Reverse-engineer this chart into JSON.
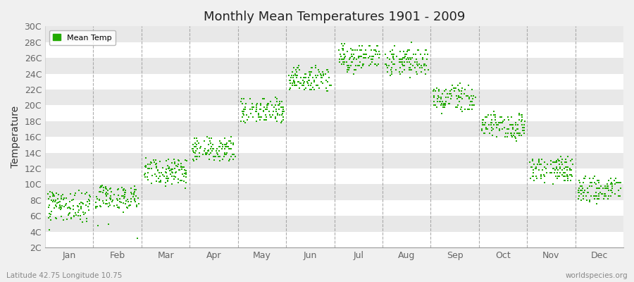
{
  "title": "Monthly Mean Temperatures 1901 - 2009",
  "ylabel": "Temperature",
  "background_color": "#f0f0f0",
  "plot_bg_color": "#f0f0f0",
  "stripe_color_light": "#f5f5f5",
  "stripe_color_dark": "#e8e8e8",
  "dot_color": "#22aa00",
  "dot_size": 3,
  "ylim": [
    2,
    30
  ],
  "ytick_labels": [
    "2C",
    "4C",
    "6C",
    "8C",
    "10C",
    "12C",
    "14C",
    "16C",
    "18C",
    "20C",
    "22C",
    "24C",
    "26C",
    "28C",
    "30C"
  ],
  "ytick_values": [
    2,
    4,
    6,
    8,
    10,
    12,
    14,
    16,
    18,
    20,
    22,
    24,
    26,
    28,
    30
  ],
  "months": [
    "Jan",
    "Feb",
    "Mar",
    "Apr",
    "May",
    "Jun",
    "Jul",
    "Aug",
    "Sep",
    "Oct",
    "Nov",
    "Dec"
  ],
  "footnote_left": "Latitude 42.75 Longitude 10.75",
  "footnote_right": "worldspecies.org",
  "legend_label": "Mean Temp",
  "mean_temps": {
    "Jan": [
      7.2,
      8.1,
      7.5,
      6.8,
      8.5,
      7.0,
      9.1,
      8.8,
      7.3,
      6.5,
      8.2,
      7.9,
      6.2,
      7.6,
      8.0,
      5.8,
      7.1,
      6.9,
      8.3,
      7.4,
      6.0,
      8.7,
      7.8,
      5.5,
      7.0,
      8.9,
      7.2,
      6.4,
      8.1,
      4.2,
      5.9,
      7.8,
      8.4,
      6.7,
      7.5,
      5.2,
      6.8,
      8.0,
      7.3,
      5.6,
      8.8,
      7.1,
      6.3,
      9.0,
      7.7,
      6.1,
      8.5,
      7.0,
      5.7,
      7.4,
      8.6,
      6.9,
      7.2,
      5.3,
      8.1,
      7.8,
      6.6,
      8.9,
      7.4,
      5.9,
      8.3,
      7.0,
      6.5,
      8.7,
      7.3,
      5.8,
      8.0,
      7.6,
      6.2,
      8.4,
      7.1,
      5.7,
      8.8,
      7.5,
      6.0,
      9.2,
      7.2,
      5.5,
      8.1,
      7.8,
      6.4,
      8.6,
      7.3,
      5.9,
      8.2,
      7.0,
      6.7,
      8.9,
      7.4,
      6.1,
      8.5,
      7.2,
      5.6,
      8.0,
      7.7,
      6.3,
      8.8,
      7.5,
      5.8,
      9.0,
      7.1,
      6.4,
      8.3,
      7.8,
      5.7,
      8.7,
      7.4,
      6.0,
      8.2
    ],
    "Feb": [
      8.0,
      7.2,
      9.0,
      8.5,
      7.8,
      6.5,
      8.9,
      7.4,
      9.2,
      8.0,
      7.1,
      9.5,
      8.2,
      7.6,
      9.1,
      8.8,
      7.3,
      9.0,
      8.4,
      7.0,
      9.3,
      8.7,
      7.5,
      9.8,
      8.1,
      7.2,
      9.4,
      8.6,
      7.9,
      9.1,
      8.3,
      3.2,
      8.0,
      7.4,
      5.0,
      8.8,
      7.2,
      9.6,
      8.0,
      4.8,
      9.2,
      7.8,
      8.5,
      9.9,
      8.2,
      7.5,
      9.0,
      8.7,
      7.3,
      9.4,
      8.1,
      7.8,
      9.3,
      8.5,
      7.0,
      9.1,
      8.8,
      7.4,
      9.6,
      8.2,
      7.7,
      9.0,
      8.4,
      7.1,
      9.5,
      8.3,
      7.6,
      9.2,
      8.0,
      7.4,
      9.7,
      8.5,
      7.2,
      9.3,
      8.8,
      7.5,
      9.0,
      8.2,
      7.8,
      9.4,
      8.6,
      7.3,
      9.1,
      8.0,
      7.6,
      9.5,
      8.3,
      7.0,
      9.8,
      8.7,
      7.4,
      9.2,
      8.1,
      7.9,
      9.3,
      8.5,
      7.2,
      9.6,
      8.4,
      7.7,
      9.0,
      8.2,
      7.5,
      9.4,
      8.8,
      7.1,
      9.7,
      8.3,
      7.8
    ],
    "Mar": [
      11.0,
      12.2,
      11.5,
      10.8,
      12.5,
      11.0,
      13.1,
      12.8,
      11.3,
      10.5,
      12.2,
      11.9,
      10.2,
      11.6,
      12.0,
      9.8,
      11.1,
      10.9,
      12.3,
      11.4,
      10.0,
      12.7,
      11.8,
      9.5,
      11.0,
      12.9,
      11.2,
      10.4,
      12.1,
      11.5,
      10.9,
      12.3,
      11.0,
      10.3,
      12.6,
      11.7,
      10.1,
      12.0,
      11.4,
      10.7,
      13.2,
      12.0,
      11.3,
      13.0,
      12.5,
      10.8,
      11.9,
      12.4,
      11.0,
      12.8,
      11.5,
      12.1,
      13.0,
      11.8,
      10.5,
      12.2,
      11.9,
      10.2,
      12.5,
      11.6,
      12.0,
      13.1,
      11.3,
      10.8,
      12.9,
      11.5,
      12.2,
      13.3,
      11.0,
      10.5,
      12.6,
      11.7,
      10.9,
      12.4,
      11.8,
      10.3,
      12.0,
      11.5,
      12.3,
      13.1,
      11.8,
      10.6,
      12.2,
      11.0,
      10.4,
      12.7,
      11.5,
      10.2,
      13.0,
      11.8,
      10.7,
      12.5,
      11.2,
      10.9,
      12.3,
      11.7,
      10.5,
      13.2,
      11.5,
      12.0,
      12.8,
      11.3,
      10.8,
      12.6,
      11.9,
      10.4,
      13.1,
      11.6,
      12.4
    ],
    "Apr": [
      13.5,
      14.5,
      13.8,
      14.2,
      15.0,
      13.2,
      15.5,
      14.8,
      14.1,
      13.0,
      14.8,
      14.5,
      13.2,
      14.5,
      15.0,
      13.5,
      14.0,
      13.8,
      14.8,
      13.5,
      13.0,
      15.0,
      14.2,
      13.1,
      14.5,
      15.2,
      14.0,
      13.5,
      14.8,
      14.5,
      13.8,
      15.0,
      14.5,
      13.2,
      15.5,
      14.2,
      13.5,
      15.0,
      14.3,
      13.8,
      16.0,
      14.8,
      14.0,
      15.8,
      15.0,
      13.5,
      14.5,
      15.2,
      13.8,
      15.5,
      14.2,
      14.8,
      15.5,
      14.5,
      13.2,
      14.8,
      14.5,
      13.5,
      15.2,
      14.2,
      14.6,
      15.8,
      14.0,
      13.5,
      15.5,
      14.2,
      14.8,
      16.0,
      13.8,
      13.2,
      15.2,
      14.5,
      13.8,
      15.0,
      14.5,
      13.5,
      14.8,
      14.0,
      15.2,
      15.8,
      14.5,
      13.5,
      14.8,
      13.8,
      13.2,
      15.2,
      14.0,
      13.0,
      15.8,
      14.5,
      13.8,
      15.2,
      14.0,
      13.8,
      15.0,
      14.2,
      13.5,
      15.8,
      14.2,
      14.8,
      15.5,
      14.0,
      13.5,
      15.2,
      14.8,
      13.5,
      15.8,
      14.2,
      15.0
    ],
    "May": [
      18.0,
      19.2,
      18.5,
      18.8,
      19.5,
      18.2,
      20.0,
      19.8,
      18.3,
      17.8,
      19.5,
      19.2,
      18.0,
      19.2,
      19.8,
      18.2,
      19.0,
      18.8,
      19.8,
      18.5,
      18.0,
      20.0,
      19.0,
      17.8,
      19.5,
      20.2,
      18.8,
      18.2,
      19.8,
      19.2,
      18.5,
      20.0,
      19.5,
      18.0,
      20.5,
      19.2,
      18.5,
      20.0,
      19.3,
      18.5,
      20.8,
      19.8,
      19.0,
      20.8,
      20.0,
      18.5,
      19.5,
      20.2,
      18.8,
      20.5,
      19.2,
      19.8,
      20.5,
      19.5,
      18.2,
      19.8,
      19.5,
      18.5,
      20.2,
      19.2,
      19.5,
      20.8,
      19.0,
      18.5,
      20.5,
      19.2,
      19.8,
      21.0,
      18.8,
      18.2,
      20.2,
      19.5,
      18.8,
      20.0,
      19.5,
      18.5,
      19.8,
      19.0,
      20.2,
      20.8,
      19.5,
      18.5,
      19.8,
      18.8,
      18.2,
      20.2,
      19.0,
      18.0,
      20.8,
      19.5,
      18.8,
      20.2,
      19.0,
      18.8,
      20.0,
      19.2,
      18.5,
      20.8,
      19.2,
      19.8,
      20.5,
      19.0,
      18.5,
      20.2,
      19.8,
      18.5,
      20.8,
      19.2,
      20.0
    ],
    "Jun": [
      22.0,
      23.2,
      22.5,
      22.8,
      23.5,
      22.0,
      24.0,
      23.5,
      22.3,
      21.8,
      23.5,
      23.0,
      22.0,
      23.0,
      23.8,
      22.2,
      23.0,
      22.8,
      23.8,
      22.5,
      22.0,
      24.0,
      23.0,
      21.8,
      23.5,
      24.2,
      22.8,
      22.2,
      23.8,
      23.2,
      22.5,
      24.0,
      23.5,
      22.0,
      24.5,
      23.2,
      22.5,
      24.0,
      23.2,
      22.5,
      25.0,
      23.8,
      23.0,
      24.8,
      24.0,
      22.5,
      23.5,
      24.2,
      22.8,
      24.5,
      23.2,
      23.8,
      24.5,
      23.5,
      22.2,
      23.8,
      23.5,
      22.5,
      24.2,
      23.2,
      23.5,
      24.8,
      23.0,
      22.5,
      24.5,
      23.2,
      23.8,
      25.0,
      22.8,
      22.2,
      24.2,
      23.5,
      22.8,
      24.0,
      23.5,
      22.5,
      23.8,
      23.0,
      24.2,
      24.8,
      23.5,
      22.5,
      23.8,
      22.8,
      22.2,
      24.2,
      23.0,
      22.0,
      24.8,
      23.5,
      22.8,
      24.2,
      23.0,
      22.8,
      24.0,
      23.2,
      22.5,
      24.8,
      23.2,
      23.8,
      24.5,
      23.0,
      22.5,
      24.2,
      23.8,
      22.5,
      24.8,
      23.2,
      24.0
    ],
    "Jul": [
      24.5,
      25.8,
      25.0,
      25.5,
      26.5,
      24.8,
      27.0,
      26.5,
      25.0,
      24.2,
      26.2,
      25.8,
      24.5,
      25.8,
      26.5,
      24.8,
      25.5,
      25.2,
      26.5,
      25.0,
      24.5,
      26.8,
      25.8,
      24.0,
      26.0,
      27.0,
      25.5,
      24.8,
      26.5,
      26.0,
      25.0,
      27.0,
      26.2,
      24.5,
      27.5,
      26.0,
      25.0,
      27.0,
      26.0,
      25.0,
      27.8,
      26.5,
      25.8,
      27.5,
      27.0,
      25.0,
      26.2,
      27.0,
      25.5,
      27.2,
      25.8,
      26.5,
      27.2,
      26.2,
      24.8,
      26.5,
      26.2,
      25.2,
      27.0,
      26.0,
      26.2,
      27.5,
      25.8,
      25.2,
      27.2,
      26.0,
      26.5,
      27.8,
      25.5,
      25.0,
      27.0,
      26.2,
      25.5,
      27.0,
      26.2,
      25.2,
      26.5,
      25.8,
      27.0,
      27.5,
      26.2,
      25.2,
      26.5,
      25.5,
      25.0,
      27.0,
      25.8,
      24.8,
      27.5,
      26.2,
      25.5,
      27.0,
      25.8,
      25.5,
      26.8,
      26.0,
      25.2,
      27.5,
      26.0,
      26.5,
      27.2,
      25.8,
      25.2,
      27.0,
      26.5,
      25.2,
      27.5,
      26.0,
      26.8
    ],
    "Aug": [
      24.0,
      25.2,
      24.5,
      25.0,
      26.0,
      24.2,
      26.5,
      25.8,
      24.2,
      23.8,
      25.8,
      25.2,
      24.0,
      25.2,
      25.8,
      24.2,
      25.0,
      24.8,
      25.8,
      24.5,
      24.0,
      26.2,
      25.2,
      23.5,
      25.5,
      26.5,
      25.0,
      24.2,
      26.0,
      25.5,
      24.5,
      26.5,
      25.8,
      24.0,
      27.0,
      25.5,
      24.5,
      26.5,
      25.5,
      24.5,
      28.0,
      26.0,
      25.2,
      27.0,
      26.5,
      24.5,
      25.8,
      26.5,
      25.0,
      26.8,
      25.2,
      26.0,
      26.8,
      25.8,
      24.2,
      26.0,
      25.8,
      24.8,
      26.5,
      25.5,
      25.8,
      27.0,
      25.2,
      24.8,
      26.8,
      25.5,
      26.0,
      27.5,
      25.0,
      24.5,
      26.5,
      25.8,
      25.0,
      26.5,
      25.8,
      24.8,
      26.0,
      25.2,
      26.5,
      27.0,
      25.8,
      24.8,
      26.0,
      25.0,
      24.5,
      26.5,
      25.2,
      24.2,
      27.0,
      25.8,
      25.0,
      26.5,
      25.2,
      25.0,
      26.2,
      25.5,
      24.8,
      27.0,
      25.5,
      26.0,
      26.8,
      25.2,
      24.8,
      26.5,
      26.0,
      24.8,
      27.0,
      25.5,
      26.2
    ],
    "Sep": [
      19.5,
      20.8,
      20.0,
      20.5,
      21.5,
      19.8,
      22.0,
      21.5,
      20.0,
      19.2,
      21.2,
      20.8,
      19.5,
      20.8,
      21.5,
      19.8,
      20.5,
      20.2,
      21.5,
      20.0,
      19.5,
      21.8,
      20.8,
      19.0,
      21.0,
      22.0,
      20.5,
      19.8,
      21.5,
      21.0,
      20.0,
      22.0,
      21.2,
      19.5,
      22.5,
      21.0,
      20.0,
      21.5,
      21.0,
      20.0,
      22.8,
      21.5,
      20.8,
      22.5,
      22.0,
      20.0,
      21.2,
      22.0,
      20.5,
      21.8,
      20.5,
      21.2,
      22.0,
      21.0,
      19.8,
      21.2,
      21.0,
      20.0,
      21.8,
      20.8,
      21.0,
      22.2,
      20.5,
      20.0,
      22.0,
      20.8,
      21.2,
      22.5,
      20.2,
      19.8,
      21.8,
      21.0,
      20.2,
      21.8,
      21.0,
      20.0,
      21.2,
      20.5,
      21.8,
      22.2,
      21.0,
      20.0,
      21.2,
      20.2,
      19.8,
      21.8,
      20.5,
      19.5,
      22.2,
      21.0,
      20.2,
      21.8,
      20.5,
      20.2,
      21.5,
      21.0,
      20.0,
      22.2,
      20.8,
      21.2,
      22.0,
      20.5,
      20.0,
      21.8,
      21.2,
      20.0,
      22.2,
      21.0,
      21.5
    ],
    "Oct": [
      16.0,
      17.2,
      16.5,
      17.0,
      18.0,
      16.2,
      18.5,
      17.8,
      16.5,
      15.8,
      17.5,
      17.0,
      16.0,
      17.2,
      17.8,
      16.2,
      17.0,
      16.8,
      17.8,
      16.5,
      16.0,
      18.2,
      17.2,
      15.5,
      17.5,
      18.5,
      17.0,
      16.2,
      17.8,
      17.5,
      16.5,
      18.5,
      17.5,
      16.0,
      18.8,
      17.5,
      16.5,
      18.0,
      17.5,
      16.5,
      19.2,
      18.0,
      17.2,
      18.8,
      18.5,
      16.5,
      17.5,
      18.5,
      17.0,
      18.2,
      17.0,
      17.8,
      18.5,
      17.5,
      16.2,
      17.8,
      17.5,
      16.5,
      18.2,
      17.2,
      17.5,
      18.8,
      17.0,
      16.5,
      18.5,
      17.2,
      17.8,
      19.0,
      16.8,
      16.2,
      18.2,
      17.5,
      16.8,
      18.0,
      17.5,
      16.5,
      17.8,
      17.0,
      18.2,
      18.8,
      17.5,
      16.5,
      17.8,
      16.8,
      16.2,
      18.2,
      17.0,
      16.0,
      18.8,
      17.5,
      16.8,
      18.2,
      17.0,
      16.8,
      17.8,
      17.5,
      16.5,
      18.8,
      17.2,
      17.8,
      18.5,
      17.0,
      16.5,
      18.2,
      17.8,
      16.5,
      18.8,
      17.2,
      17.8
    ],
    "Nov": [
      10.5,
      11.8,
      11.0,
      11.5,
      12.5,
      10.8,
      13.0,
      12.5,
      11.0,
      10.2,
      12.2,
      11.8,
      10.5,
      11.8,
      12.5,
      10.8,
      11.5,
      11.2,
      12.5,
      11.0,
      10.5,
      12.8,
      11.8,
      10.0,
      11.8,
      12.8,
      11.5,
      10.8,
      12.5,
      12.0,
      11.0,
      13.0,
      12.2,
      10.5,
      13.2,
      12.0,
      11.0,
      12.5,
      12.0,
      11.0,
      13.5,
      12.5,
      11.8,
      13.2,
      13.0,
      11.0,
      12.2,
      13.0,
      11.5,
      12.8,
      11.5,
      12.2,
      13.0,
      12.0,
      10.8,
      12.2,
      12.0,
      11.0,
      12.8,
      11.8,
      12.0,
      13.2,
      11.5,
      11.0,
      13.0,
      11.8,
      12.2,
      13.5,
      11.2,
      10.8,
      12.8,
      12.0,
      11.2,
      12.8,
      12.0,
      11.0,
      12.2,
      11.5,
      12.8,
      13.2,
      12.0,
      11.0,
      12.2,
      11.2,
      10.8,
      12.8,
      11.5,
      10.5,
      13.2,
      12.0,
      11.2,
      12.8,
      11.5,
      11.2,
      12.5,
      12.0,
      11.0,
      13.2,
      11.8,
      12.2,
      13.0,
      11.5,
      11.0,
      12.8,
      12.2,
      11.0,
      13.2,
      11.8,
      12.5
    ],
    "Dec": [
      8.5,
      9.2,
      8.5,
      9.0,
      9.8,
      8.2,
      10.0,
      9.5,
      8.5,
      7.8,
      9.5,
      9.0,
      8.2,
      9.2,
      9.8,
      8.2,
      9.0,
      8.8,
      9.8,
      8.5,
      8.0,
      10.2,
      9.0,
      7.5,
      9.2,
      10.0,
      8.8,
      8.2,
      9.8,
      9.5,
      8.5,
      10.2,
      9.5,
      8.0,
      10.5,
      9.5,
      8.5,
      10.0,
      9.5,
      8.5,
      11.0,
      10.0,
      9.2,
      10.8,
      10.5,
      8.5,
      9.5,
      10.2,
      9.0,
      10.2,
      8.8,
      9.8,
      10.5,
      9.5,
      8.2,
      9.8,
      9.5,
      8.5,
      10.2,
      9.2,
      9.5,
      10.8,
      9.0,
      8.5,
      10.5,
      9.2,
      9.8,
      11.0,
      8.8,
      8.2,
      10.2,
      9.5,
      8.8,
      10.2,
      9.5,
      8.5,
      9.8,
      9.0,
      10.2,
      10.8,
      9.5,
      8.5,
      9.8,
      8.8,
      8.2,
      10.2,
      9.0,
      8.0,
      10.8,
      9.5,
      8.8,
      10.2,
      9.0,
      8.8,
      10.0,
      9.5,
      8.5,
      10.8,
      9.2,
      9.8,
      10.5,
      9.0,
      8.5,
      10.2,
      9.8,
      8.5,
      10.8,
      9.2,
      10.0
    ]
  }
}
